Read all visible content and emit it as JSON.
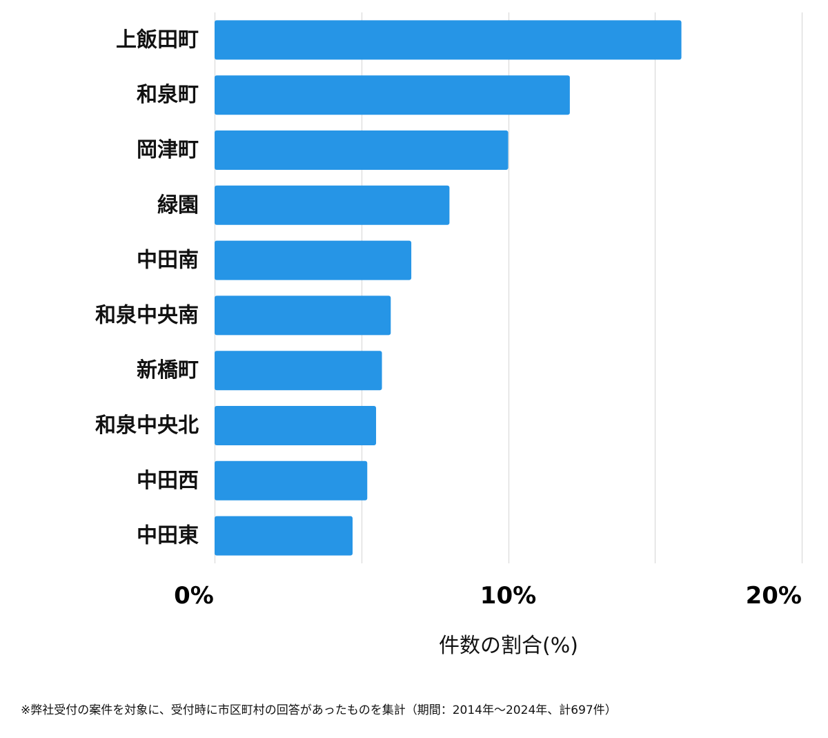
{
  "chart_data": {
    "type": "bar",
    "orientation": "horizontal",
    "categories": [
      "上飯田町",
      "和泉町",
      "岡津町",
      "緑園",
      "中田南",
      "和泉中央南",
      "新橋町",
      "和泉中央北",
      "中田西",
      "中田東"
    ],
    "values": [
      15.9,
      12.1,
      10.0,
      8.0,
      6.7,
      6.0,
      5.7,
      5.5,
      5.2,
      4.7
    ],
    "xlim": [
      0,
      20
    ],
    "x_ticks": [
      0,
      10,
      20
    ],
    "x_tick_labels": [
      "0%",
      "10%",
      "20%"
    ],
    "xlabel": "件数の割合(%)",
    "ylabel": "",
    "grid": true,
    "bar_color": "#2695e6"
  },
  "footnote": "※弊社受付の案件を対象に、受付時に市区町村の回答があったものを集計（期間：2014年〜2024年、計697件）"
}
